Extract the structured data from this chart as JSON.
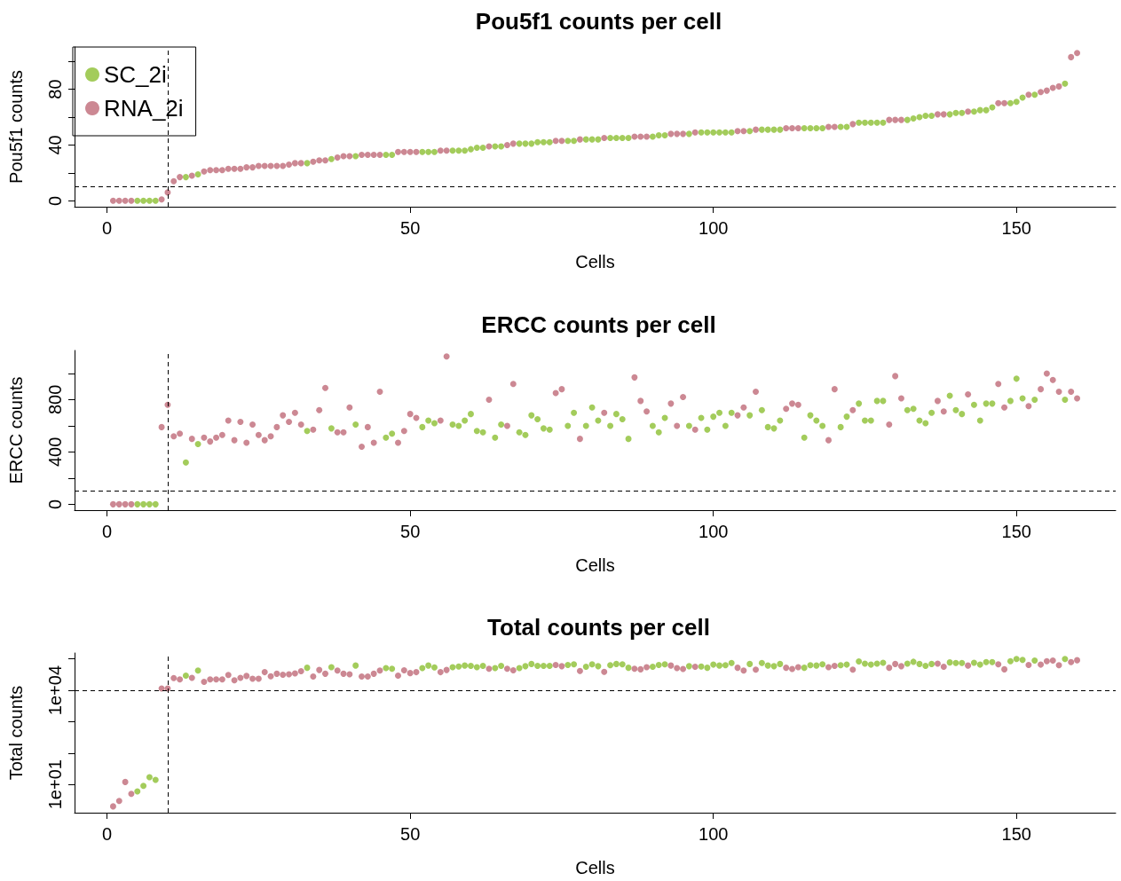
{
  "chart_data": [
    {
      "type": "scatter",
      "title": "Pou5f1 counts per cell",
      "xlabel": "Cells",
      "ylabel": "Pou5f1 counts",
      "xlim": [
        -5.36,
        166.36
      ],
      "xticks": [
        0,
        50,
        100,
        150
      ],
      "ylim": [
        -4.24,
        110.24
      ],
      "yticks": [
        0,
        {
          "value": 20,
          "label": null
        },
        40,
        {
          "value": 60,
          "label": null
        },
        80,
        {
          "value": 100,
          "label": null
        }
      ],
      "marker": "circle",
      "grid": false,
      "legend": "top left",
      "ref_lines": [
        {
          "axis": "x",
          "value": 10,
          "color": "#000000",
          "line_style": "dashed"
        },
        {
          "axis": "y",
          "value": 10,
          "color": "#000000",
          "line_style": "dashed"
        }
      ],
      "series": [
        {
          "name": "SC_2i",
          "color": "#a3cc5b",
          "x": [
            5,
            6,
            7,
            8,
            13,
            15,
            33,
            37,
            41,
            46,
            47,
            52,
            53,
            54,
            57,
            58,
            59,
            60,
            61,
            62,
            64,
            65,
            68,
            69,
            70,
            71,
            72,
            73,
            76,
            77,
            79,
            80,
            81,
            83,
            84,
            85,
            86,
            90,
            91,
            92,
            96,
            98,
            99,
            100,
            101,
            102,
            103,
            106,
            108,
            109,
            110,
            111,
            115,
            116,
            117,
            118,
            121,
            122,
            124,
            125,
            126,
            127,
            128,
            132,
            133,
            134,
            135,
            136,
            139,
            140,
            141,
            143,
            144,
            145,
            146,
            149,
            150,
            151,
            153,
            158
          ],
          "values": [
            0,
            0,
            0,
            0,
            17,
            19,
            27,
            30,
            32,
            33,
            33,
            35,
            35,
            35,
            36,
            36,
            36,
            37,
            38,
            38,
            39,
            39,
            41,
            41,
            41,
            42,
            42,
            42,
            43,
            43,
            44,
            44,
            44,
            45,
            45,
            45,
            45,
            46,
            47,
            47,
            48,
            49,
            49,
            49,
            49,
            49,
            49,
            50,
            51,
            51,
            51,
            51,
            52,
            52,
            52,
            52,
            53,
            53,
            56,
            56,
            56,
            56,
            56,
            58,
            59,
            60,
            61,
            61,
            62,
            63,
            63,
            64,
            65,
            65,
            67,
            70,
            71,
            74,
            76,
            84
          ]
        },
        {
          "name": "RNA_2i",
          "color": "#cc8893",
          "x": [
            1,
            2,
            3,
            4,
            9,
            10,
            11,
            12,
            14,
            16,
            17,
            18,
            19,
            20,
            21,
            22,
            23,
            24,
            25,
            26,
            27,
            28,
            29,
            30,
            31,
            32,
            34,
            35,
            36,
            38,
            39,
            40,
            42,
            43,
            44,
            45,
            48,
            49,
            50,
            51,
            55,
            56,
            63,
            66,
            67,
            74,
            75,
            78,
            82,
            87,
            88,
            89,
            93,
            94,
            95,
            97,
            104,
            105,
            107,
            112,
            113,
            114,
            119,
            120,
            123,
            129,
            130,
            131,
            137,
            138,
            142,
            147,
            148,
            152,
            154,
            155,
            156,
            157,
            159,
            160
          ],
          "values": [
            0,
            0,
            0,
            0,
            1,
            6,
            14,
            17,
            18,
            21,
            22,
            22,
            22,
            23,
            23,
            23,
            24,
            24,
            25,
            25,
            25,
            25,
            25,
            26,
            27,
            27,
            28,
            29,
            29,
            31,
            32,
            32,
            33,
            33,
            33,
            33,
            35,
            35,
            35,
            35,
            36,
            36,
            39,
            40,
            41,
            43,
            43,
            44,
            45,
            46,
            46,
            46,
            48,
            48,
            48,
            49,
            50,
            50,
            51,
            52,
            52,
            52,
            53,
            53,
            55,
            58,
            58,
            58,
            62,
            62,
            64,
            70,
            70,
            76,
            78,
            79,
            81,
            82,
            103,
            106
          ]
        }
      ]
    },
    {
      "type": "scatter",
      "title": "ERCC counts per cell",
      "xlabel": "Cells",
      "ylabel": "ERCC counts",
      "xlim": [
        -5.36,
        166.36
      ],
      "xticks": [
        0,
        50,
        100,
        150
      ],
      "ylim": [
        -45,
        1176
      ],
      "yticks": [
        0,
        {
          "value": 200,
          "label": null
        },
        400,
        {
          "value": 600,
          "label": null
        },
        800,
        {
          "value": 1000,
          "label": null
        }
      ],
      "marker": "circle",
      "grid": false,
      "ref_lines": [
        {
          "axis": "x",
          "value": 10,
          "color": "#000000",
          "line_style": "dashed"
        },
        {
          "axis": "y",
          "value": 100,
          "color": "#000000",
          "line_style": "dashed"
        }
      ],
      "series": [
        {
          "color": "#a3cc5b",
          "x": [
            5,
            6,
            7,
            8,
            13,
            15,
            33,
            37,
            41,
            46,
            47,
            52,
            53,
            54,
            57,
            58,
            59,
            60,
            61,
            62,
            64,
            65,
            68,
            69,
            70,
            71,
            72,
            73,
            76,
            77,
            79,
            80,
            81,
            83,
            84,
            85,
            86,
            90,
            91,
            92,
            96,
            98,
            99,
            100,
            101,
            102,
            103,
            106,
            108,
            109,
            110,
            111,
            115,
            116,
            117,
            118,
            121,
            122,
            124,
            125,
            126,
            127,
            128,
            132,
            133,
            134,
            135,
            136,
            139,
            140,
            141,
            143,
            144,
            145,
            146,
            149,
            150,
            151,
            153,
            158
          ],
          "values": [
            0,
            0,
            0,
            0,
            320,
            460,
            560,
            580,
            610,
            510,
            540,
            590,
            640,
            620,
            610,
            600,
            640,
            690,
            560,
            550,
            510,
            610,
            550,
            530,
            680,
            650,
            580,
            570,
            600,
            700,
            600,
            740,
            640,
            600,
            690,
            650,
            500,
            600,
            550,
            660,
            600,
            660,
            570,
            670,
            700,
            600,
            700,
            680,
            720,
            590,
            580,
            640,
            510,
            680,
            640,
            600,
            590,
            670,
            770,
            640,
            640,
            790,
            790,
            720,
            730,
            640,
            620,
            700,
            830,
            720,
            690,
            760,
            640,
            770,
            770,
            790,
            960,
            810,
            800,
            800
          ]
        },
        {
          "color": "#cc8893",
          "x": [
            1,
            2,
            3,
            4,
            9,
            10,
            11,
            12,
            14,
            16,
            17,
            18,
            19,
            20,
            21,
            22,
            23,
            24,
            25,
            26,
            27,
            28,
            29,
            30,
            31,
            32,
            34,
            35,
            36,
            38,
            39,
            40,
            42,
            43,
            44,
            45,
            48,
            49,
            50,
            51,
            55,
            56,
            63,
            66,
            67,
            74,
            75,
            78,
            82,
            87,
            88,
            89,
            93,
            94,
            95,
            97,
            104,
            105,
            107,
            112,
            113,
            114,
            119,
            120,
            123,
            129,
            130,
            131,
            137,
            138,
            142,
            147,
            148,
            152,
            154,
            155,
            156,
            157,
            159,
            160
          ],
          "values": [
            0,
            0,
            0,
            0,
            590,
            760,
            520,
            540,
            500,
            510,
            480,
            510,
            530,
            640,
            490,
            630,
            470,
            610,
            530,
            490,
            520,
            590,
            680,
            630,
            700,
            610,
            570,
            720,
            890,
            550,
            550,
            740,
            440,
            590,
            470,
            860,
            470,
            560,
            690,
            660,
            640,
            1130,
            800,
            600,
            920,
            850,
            880,
            500,
            700,
            970,
            790,
            710,
            770,
            600,
            820,
            570,
            680,
            740,
            860,
            730,
            770,
            760,
            490,
            880,
            720,
            610,
            980,
            810,
            790,
            710,
            840,
            920,
            740,
            750,
            880,
            1000,
            950,
            860,
            860,
            810
          ]
        }
      ]
    },
    {
      "type": "scatter",
      "title": "Total counts per cell",
      "xlabel": "Cells",
      "ylabel": "Total counts",
      "xlim": [
        -5.36,
        166.36
      ],
      "xticks": [
        0,
        50,
        100,
        150
      ],
      "log": "y",
      "ylim": [
        1.26,
        155000
      ],
      "yticks": [
        {
          "value": 10,
          "label": "1e+01"
        },
        {
          "value": 100,
          "label": null
        },
        {
          "value": 1000,
          "label": null
        },
        {
          "value": 10000,
          "label": "1e+04"
        },
        {
          "value": 100000,
          "label": null
        }
      ],
      "marker": "circle",
      "grid": false,
      "ref_lines": [
        {
          "axis": "x",
          "value": 10,
          "color": "#000000",
          "line_style": "dashed"
        },
        {
          "axis": "y",
          "value": 10000,
          "color": "#000000",
          "line_style": "dashed"
        }
      ],
      "series": [
        {
          "color": "#a3cc5b",
          "x": [
            5,
            6,
            7,
            8,
            13,
            15,
            33,
            37,
            41,
            46,
            47,
            52,
            53,
            54,
            57,
            58,
            59,
            60,
            61,
            62,
            64,
            65,
            68,
            69,
            70,
            71,
            72,
            73,
            76,
            77,
            79,
            80,
            81,
            83,
            84,
            85,
            86,
            90,
            91,
            92,
            96,
            98,
            99,
            100,
            101,
            102,
            103,
            106,
            108,
            109,
            110,
            111,
            115,
            116,
            117,
            118,
            121,
            122,
            124,
            125,
            126,
            127,
            128,
            132,
            133,
            134,
            135,
            136,
            139,
            140,
            141,
            143,
            144,
            145,
            146,
            149,
            150,
            151,
            153,
            158
          ],
          "values": [
            6,
            9,
            17,
            14,
            29500,
            42700,
            52500,
            55000,
            61700,
            51300,
            49000,
            51300,
            61700,
            53700,
            55000,
            57500,
            61700,
            60300,
            55000,
            60300,
            51300,
            60300,
            51300,
            58900,
            69200,
            60300,
            60300,
            60300,
            64600,
            67600,
            56200,
            67600,
            58900,
            63100,
            69200,
            67600,
            52500,
            56200,
            64600,
            67600,
            58900,
            57500,
            52500,
            66100,
            61700,
            63100,
            74100,
            69200,
            74100,
            61700,
            58900,
            69200,
            52500,
            63100,
            61700,
            67600,
            63100,
            66100,
            83200,
            70800,
            66100,
            70800,
            75900,
            70800,
            81300,
            69200,
            60300,
            69200,
            77600,
            74100,
            74100,
            75900,
            66100,
            79400,
            79400,
            85100,
            100000,
            93300,
            89100,
            100000
          ]
        },
        {
          "color": "#cc8893",
          "x": [
            1,
            2,
            3,
            4,
            9,
            10,
            11,
            12,
            14,
            16,
            17,
            18,
            19,
            20,
            21,
            22,
            23,
            24,
            25,
            26,
            27,
            28,
            29,
            30,
            31,
            32,
            34,
            35,
            36,
            38,
            39,
            40,
            42,
            43,
            44,
            45,
            48,
            49,
            50,
            51,
            55,
            56,
            63,
            66,
            67,
            74,
            75,
            78,
            82,
            87,
            88,
            89,
            93,
            94,
            95,
            97,
            104,
            105,
            107,
            112,
            113,
            114,
            119,
            120,
            123,
            129,
            130,
            131,
            137,
            138,
            142,
            147,
            148,
            152,
            154,
            155,
            156,
            157,
            159,
            160
          ],
          "values": [
            2,
            3,
            12,
            5,
            11500,
            11500,
            24500,
            22400,
            25100,
            18600,
            22400,
            22400,
            22400,
            30900,
            20900,
            25100,
            28800,
            23400,
            23400,
            38000,
            28200,
            33900,
            31600,
            32400,
            34700,
            40700,
            27500,
            44700,
            33900,
            42700,
            33900,
            32400,
            27500,
            27500,
            33900,
            42700,
            29500,
            43700,
            35500,
            38000,
            38000,
            44700,
            49000,
            49000,
            43700,
            64600,
            58900,
            41700,
            38900,
            49000,
            46800,
            55000,
            61700,
            51300,
            47900,
            56200,
            52500,
            42700,
            45700,
            52500,
            47900,
            55000,
            55000,
            60300,
            45700,
            52500,
            69200,
            58900,
            70800,
            56200,
            61700,
            67600,
            46800,
            64600,
            66100,
            85100,
            89100,
            63100,
            79400,
            91200
          ]
        }
      ]
    }
  ]
}
